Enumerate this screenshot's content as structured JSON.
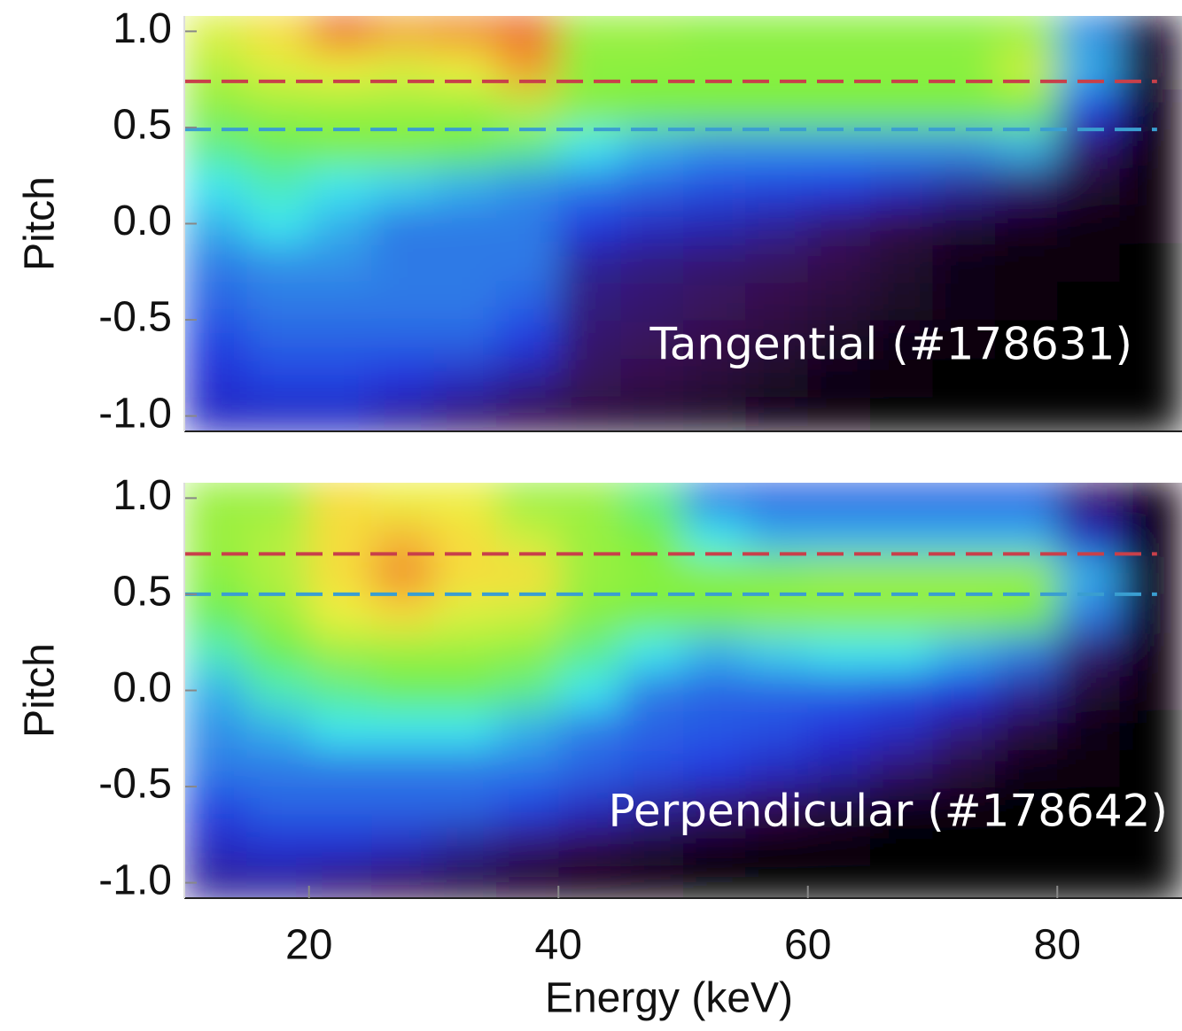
{
  "chart_data": [
    {
      "type": "heatmap",
      "ylabel": "Pitch",
      "annotation": "Tangential (#178631)",
      "xlim": [
        10,
        90
      ],
      "ylim": [
        -1.08,
        1.08
      ],
      "yticks": [
        {
          "value": 1.0,
          "label": "1.0"
        },
        {
          "value": 0.5,
          "label": "0.5"
        },
        {
          "value": 0,
          "label": "0.0"
        },
        {
          "value": -0.5,
          "label": "-0.5"
        },
        {
          "value": -1.0,
          "label": "-1.0"
        }
      ],
      "colorscale": [
        "#000000",
        "#3a1050",
        "#2030e0",
        "#40e8f0",
        "#6ef040",
        "#f8f040",
        "#e83020"
      ],
      "xbins": [
        10,
        15,
        20,
        25,
        30,
        35,
        40,
        45,
        50,
        55,
        60,
        65,
        70,
        75,
        80,
        85,
        90
      ],
      "ybins": [
        -1.1,
        -0.9,
        -0.7,
        -0.5,
        -0.3,
        -0.1,
        0.1,
        0.3,
        0.5,
        0.7,
        0.9,
        1.1
      ],
      "z": [
        [
          0.3,
          0.3,
          0.3,
          0.25,
          0.2,
          0.15,
          0.12,
          0.1,
          0.08,
          0.05,
          0.02,
          0.01,
          0,
          0,
          0,
          0
        ],
        [
          0.32,
          0.35,
          0.35,
          0.33,
          0.3,
          0.25,
          0.18,
          0.15,
          0.12,
          0.08,
          0.05,
          0.02,
          0.01,
          0,
          0,
          0
        ],
        [
          0.35,
          0.38,
          0.38,
          0.38,
          0.38,
          0.34,
          0.2,
          0.18,
          0.15,
          0.12,
          0.08,
          0.05,
          0.02,
          0.01,
          0.01,
          0
        ],
        [
          0.38,
          0.4,
          0.4,
          0.4,
          0.4,
          0.38,
          0.22,
          0.2,
          0.18,
          0.15,
          0.12,
          0.08,
          0.04,
          0.02,
          0.01,
          0.01
        ],
        [
          0.4,
          0.42,
          0.42,
          0.4,
          0.4,
          0.4,
          0.25,
          0.22,
          0.2,
          0.18,
          0.15,
          0.1,
          0.05,
          0.03,
          0.02,
          0.01
        ],
        [
          0.45,
          0.5,
          0.45,
          0.4,
          0.4,
          0.4,
          0.34,
          0.3,
          0.28,
          0.25,
          0.2,
          0.15,
          0.1,
          0.06,
          0.03,
          0.02
        ],
        [
          0.5,
          0.55,
          0.5,
          0.48,
          0.45,
          0.42,
          0.4,
          0.38,
          0.36,
          0.35,
          0.34,
          0.3,
          0.25,
          0.2,
          0.1,
          0.02
        ],
        [
          0.6,
          0.65,
          0.68,
          0.68,
          0.66,
          0.6,
          0.5,
          0.45,
          0.42,
          0.42,
          0.42,
          0.42,
          0.42,
          0.45,
          0.2,
          0.03
        ],
        [
          0.7,
          0.72,
          0.72,
          0.72,
          0.72,
          0.75,
          0.7,
          0.68,
          0.68,
          0.68,
          0.68,
          0.68,
          0.68,
          0.68,
          0.35,
          0.05
        ],
        [
          0.75,
          0.8,
          0.82,
          0.8,
          0.82,
          0.9,
          0.7,
          0.7,
          0.7,
          0.7,
          0.7,
          0.7,
          0.7,
          0.78,
          0.45,
          0.08
        ],
        [
          0.8,
          0.85,
          0.95,
          0.9,
          0.92,
          0.95,
          0.72,
          0.72,
          0.7,
          0.7,
          0.7,
          0.7,
          0.7,
          0.72,
          0.42,
          0.1
        ]
      ],
      "lines": [
        {
          "color": "#c8404a",
          "x": [
            10,
            88
          ],
          "values": [
            0.74,
            0.74
          ]
        },
        {
          "color": "#3a9ed0",
          "x": [
            10,
            88
          ],
          "values": [
            0.49,
            0.49
          ]
        }
      ]
    },
    {
      "type": "heatmap",
      "ylabel": "Pitch",
      "xlabel": "Energy (keV)",
      "annotation": "Perpendicular (#178642)",
      "xlim": [
        10,
        90
      ],
      "ylim": [
        -1.08,
        1.08
      ],
      "xticks": [
        20,
        40,
        60,
        80
      ],
      "yticks": [
        {
          "value": 1.0,
          "label": "1.0"
        },
        {
          "value": 0.5,
          "label": "0.5"
        },
        {
          "value": 0,
          "label": "0.0"
        },
        {
          "value": -0.5,
          "label": "-0.5"
        },
        {
          "value": -1.0,
          "label": "-1.0"
        }
      ],
      "colorscale": [
        "#000000",
        "#3a1050",
        "#2030e0",
        "#40e8f0",
        "#6ef040",
        "#f8f040",
        "#e83020"
      ],
      "xbins": [
        10,
        15,
        20,
        25,
        30,
        35,
        40,
        45,
        50,
        55,
        60,
        65,
        70,
        75,
        80,
        85,
        90
      ],
      "ybins": [
        -1.1,
        -0.9,
        -0.7,
        -0.5,
        -0.3,
        -0.1,
        0.1,
        0.3,
        0.5,
        0.7,
        0.9,
        1.1
      ],
      "z": [
        [
          0.25,
          0.25,
          0.2,
          0.15,
          0.1,
          0.06,
          0.03,
          0.02,
          0.01,
          0,
          0,
          0,
          0,
          0,
          0,
          0
        ],
        [
          0.3,
          0.32,
          0.32,
          0.3,
          0.25,
          0.2,
          0.15,
          0.1,
          0.06,
          0.03,
          0.02,
          0.01,
          0,
          0,
          0,
          0
        ],
        [
          0.35,
          0.38,
          0.38,
          0.38,
          0.38,
          0.35,
          0.3,
          0.25,
          0.2,
          0.15,
          0.1,
          0.05,
          0.02,
          0.01,
          0,
          0
        ],
        [
          0.4,
          0.4,
          0.4,
          0.4,
          0.4,
          0.4,
          0.38,
          0.36,
          0.34,
          0.3,
          0.26,
          0.2,
          0.12,
          0.05,
          0.02,
          0.01
        ],
        [
          0.42,
          0.45,
          0.5,
          0.5,
          0.5,
          0.45,
          0.4,
          0.38,
          0.37,
          0.36,
          0.33,
          0.3,
          0.22,
          0.12,
          0.05,
          0.01
        ],
        [
          0.45,
          0.55,
          0.6,
          0.65,
          0.65,
          0.6,
          0.5,
          0.4,
          0.38,
          0.38,
          0.38,
          0.36,
          0.33,
          0.25,
          0.1,
          0.02
        ],
        [
          0.55,
          0.65,
          0.72,
          0.72,
          0.72,
          0.7,
          0.6,
          0.5,
          0.45,
          0.48,
          0.5,
          0.5,
          0.45,
          0.4,
          0.2,
          0.03
        ],
        [
          0.65,
          0.72,
          0.82,
          0.85,
          0.8,
          0.78,
          0.7,
          0.68,
          0.68,
          0.7,
          0.7,
          0.7,
          0.7,
          0.68,
          0.4,
          0.04
        ],
        [
          0.7,
          0.75,
          0.85,
          0.92,
          0.85,
          0.85,
          0.72,
          0.7,
          0.7,
          0.7,
          0.72,
          0.72,
          0.72,
          0.72,
          0.45,
          0.05
        ],
        [
          0.72,
          0.75,
          0.85,
          0.88,
          0.85,
          0.78,
          0.72,
          0.68,
          0.5,
          0.45,
          0.45,
          0.45,
          0.45,
          0.45,
          0.3,
          0.05
        ],
        [
          0.72,
          0.72,
          0.85,
          0.82,
          0.82,
          0.72,
          0.72,
          0.6,
          0.4,
          0.38,
          0.38,
          0.38,
          0.38,
          0.38,
          0.2,
          0.05
        ]
      ],
      "lines": [
        {
          "color": "#c8404a",
          "x": [
            10,
            88
          ],
          "values": [
            0.71,
            0.71
          ]
        },
        {
          "color": "#3a9ed0",
          "x": [
            10,
            88
          ],
          "values": [
            0.5,
            0.5
          ]
        }
      ]
    }
  ]
}
